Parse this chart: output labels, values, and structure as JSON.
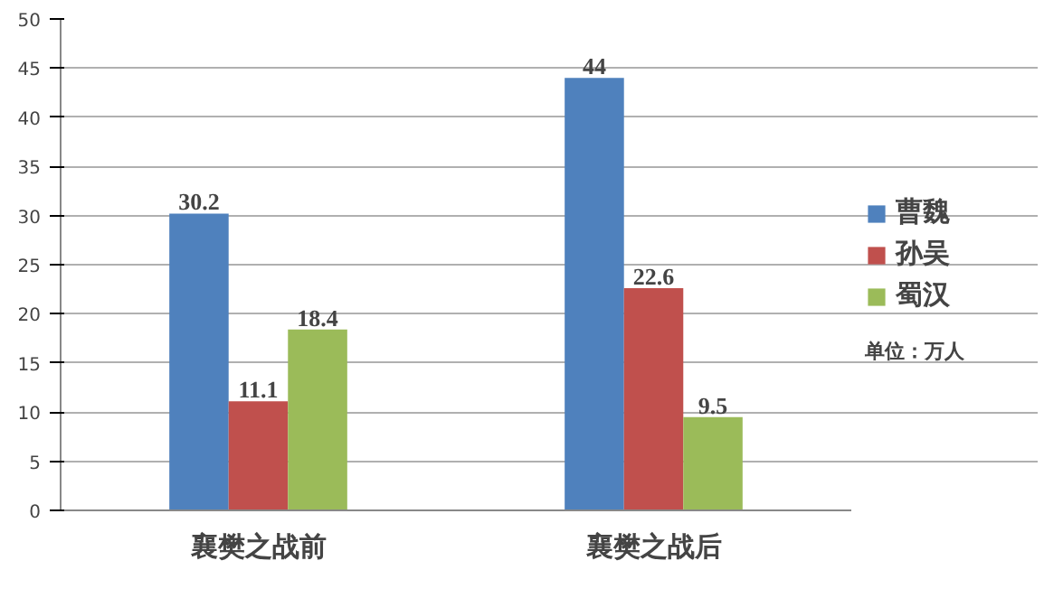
{
  "chart_data": {
    "type": "bar",
    "categories": [
      "襄樊之战前",
      "襄樊之战后"
    ],
    "series": [
      {
        "name": "曹魏",
        "color": "#4f81bd",
        "values": [
          30.2,
          44
        ]
      },
      {
        "name": "孙吴",
        "color": "#c0504d",
        "values": [
          11.1,
          22.6
        ]
      },
      {
        "name": "蜀汉",
        "color": "#9bbb59",
        "values": [
          18.4,
          9.5
        ]
      }
    ],
    "ylim": [
      0,
      50
    ],
    "yticks": [
      0,
      5,
      10,
      15,
      20,
      25,
      30,
      35,
      40,
      45,
      50
    ],
    "grid": "y",
    "legend": "right",
    "data_labels": true,
    "annotations": [
      "单位：万人"
    ]
  }
}
